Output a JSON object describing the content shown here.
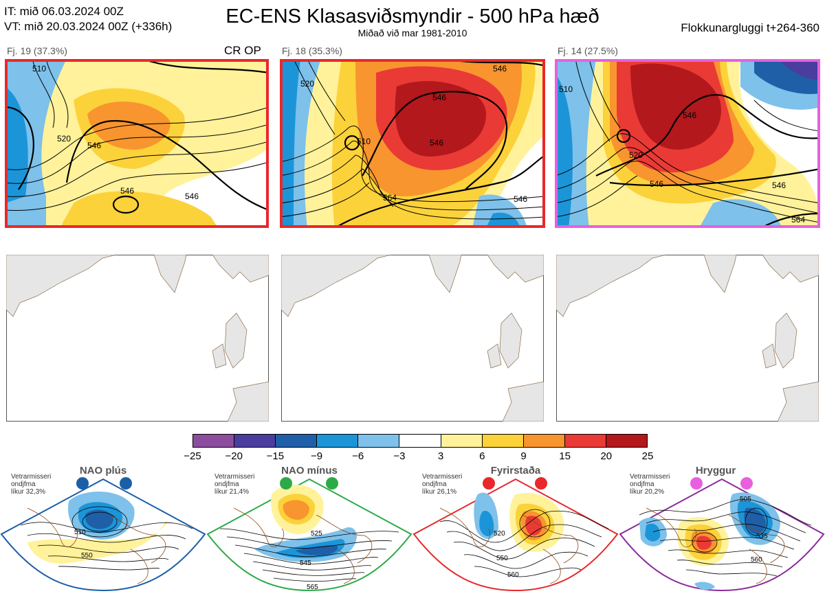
{
  "header": {
    "init_time": "IT: mið 06.03.2024 00Z",
    "valid_time": "VT: mið 20.03.2024 00Z  (+336h)",
    "title": "EC-ENS Klasasviðsmyndir - 500 hPa hæð",
    "subtitle": "Miðað við mar 1981-2010",
    "window": "Flokkunargluggi t+264-360"
  },
  "clusters": [
    {
      "label": "Fj. 19 (37.3%)",
      "tag": "CR OP",
      "frame_color": "#e8282b",
      "contours": [
        "510",
        "520",
        "546",
        "546",
        "546"
      ]
    },
    {
      "label": "Fj. 18 (35.3%)",
      "tag": "",
      "frame_color": "#e8282b",
      "contours": [
        "520",
        "510",
        "546",
        "546",
        "564",
        "546",
        "546"
      ]
    },
    {
      "label": "Fj. 14 (27.5%)",
      "tag": "",
      "frame_color": "#e85fe0",
      "contours": [
        "510",
        "520",
        "546",
        "546",
        "546",
        "564"
      ]
    }
  ],
  "colorbar": {
    "ticks": [
      "−25",
      "−20",
      "−15",
      "−9",
      "−6",
      "−3",
      "3",
      "6",
      "9",
      "15",
      "20",
      "25"
    ],
    "colors": [
      "#8c4d9e",
      "#4b3d9e",
      "#1f5fa8",
      "#1c95d8",
      "#7ec1ea",
      "#ffffff",
      "#fff29a",
      "#fcd23a",
      "#f8952f",
      "#ea3a35",
      "#b3181c"
    ]
  },
  "regimes": [
    {
      "name": "NAO plús",
      "stat1": "Vetrarmisseri",
      "stat2": "ondjfma",
      "stat3": "líkur 32,3%",
      "color": "#1a5ea8",
      "labels": [
        "510",
        "550"
      ]
    },
    {
      "name": "NAO mínus",
      "stat1": "Vetrarmisseri",
      "stat2": "ondjfma",
      "stat3": "líkur 21,4%",
      "color": "#2caa48",
      "labels": [
        "525",
        "545",
        "565"
      ]
    },
    {
      "name": "Fyrirstaða",
      "stat1": "Vetrarmisseri",
      "stat2": "ondjfma",
      "stat3": "líkur 26,1%",
      "color": "#e8282b",
      "labels": [
        "520",
        "550",
        "560"
      ]
    },
    {
      "name": "Hryggur",
      "stat1": "Vetrarmisseri",
      "stat2": "ondjfma",
      "stat3": "líkur 20,2%",
      "color": "#e85fe0",
      "labels": [
        "505",
        "535",
        "560"
      ]
    }
  ]
}
